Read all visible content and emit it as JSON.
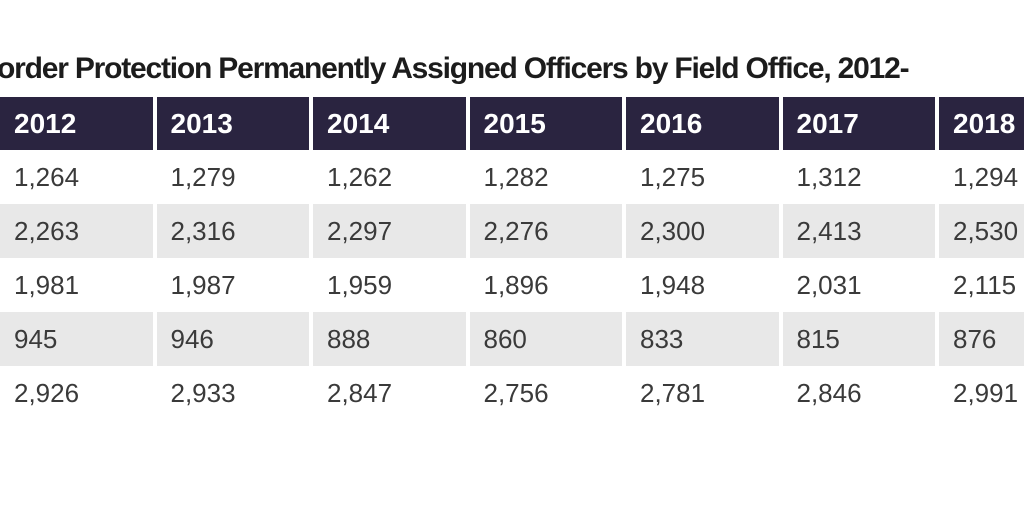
{
  "title": "order Protection Permanently Assigned Officers by Field Office, 2012-",
  "colors": {
    "page_bg": "#ffffff",
    "title_text": "#1c1c1c",
    "header_bg": "#2a2440",
    "header_text": "#ffffff",
    "row_alt_bg": "#e8e8e8",
    "cell_text": "#3a3a3a"
  },
  "chart_data": {
    "type": "table",
    "title": "order Protection Permanently Assigned Officers by Field Office, 2012-",
    "columns": [
      "2012",
      "2013",
      "2014",
      "2015",
      "2016",
      "2017",
      "2018"
    ],
    "rows": [
      [
        "1,264",
        "1,279",
        "1,262",
        "1,282",
        "1,275",
        "1,312",
        "1,294"
      ],
      [
        "2,263",
        "2,316",
        "2,297",
        "2,276",
        "2,300",
        "2,413",
        "2,530"
      ],
      [
        "1,981",
        "1,987",
        "1,959",
        "1,896",
        "1,948",
        "2,031",
        "2,115"
      ],
      [
        "945",
        "946",
        "888",
        "860",
        "833",
        "815",
        "876"
      ],
      [
        "2,926",
        "2,933",
        "2,847",
        "2,756",
        "2,781",
        "2,846",
        "2,991"
      ]
    ],
    "layout": {
      "header_position": "top",
      "zebra_striping": true,
      "striped_row_indexes": [
        1,
        3
      ],
      "text_align": "left",
      "cropped_edges": [
        "left",
        "right"
      ]
    }
  }
}
